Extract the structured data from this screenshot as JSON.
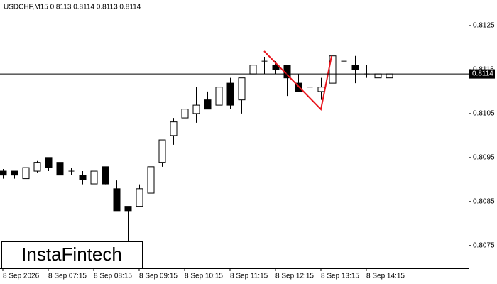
{
  "chart_data": {
    "type": "candlestick",
    "title": "USDCHF,M15  0.8113 0.8114 0.8113 0.8114",
    "categories": [
      "8 Sep 2026",
      null,
      null,
      null,
      "8 Sep 07:15",
      null,
      null,
      null,
      "8 Sep 08:15",
      null,
      null,
      null,
      "8 Sep 09:15",
      null,
      null,
      null,
      "8 Sep 10:15",
      null,
      null,
      null,
      "8 Sep 11:15",
      null,
      null,
      null,
      "8 Sep 12:15",
      null,
      null,
      null,
      "8 Sep 13:15",
      null,
      null,
      null,
      "8 Sep 14:15",
      null,
      null
    ],
    "open": [
      0.80919,
      0.80919,
      0.80902,
      0.80919,
      0.8095,
      0.80939,
      0.80919,
      0.8091,
      0.8089,
      0.80929,
      0.80879,
      0.80839,
      0.80839,
      0.80869,
      0.80939,
      0.81,
      0.8104,
      0.8105,
      0.81081,
      0.81069,
      0.81119,
      0.81081,
      0.8114,
      0.81169,
      0.8116,
      0.8116,
      0.81119,
      0.8111,
      0.811,
      0.81119,
      0.81169,
      0.8116,
      0.8114,
      0.81131,
      0.81131
    ],
    "high": [
      0.80924,
      0.80919,
      0.80931,
      0.80942,
      0.8095,
      0.80939,
      0.80927,
      0.80919,
      0.80927,
      0.80929,
      0.80898,
      0.80839,
      0.80889,
      0.80932,
      0.8099,
      0.8104,
      0.81069,
      0.8111,
      0.811,
      0.81119,
      0.81131,
      0.81131,
      0.81181,
      0.81179,
      0.81169,
      0.8116,
      0.8114,
      0.8114,
      0.81131,
      0.81181,
      0.81181,
      0.81181,
      0.8116,
      0.8114,
      0.8114
    ],
    "low": [
      0.80902,
      0.80902,
      0.809,
      0.80916,
      0.80919,
      0.8091,
      0.8091,
      0.80889,
      0.8089,
      0.80889,
      0.80829,
      0.8076,
      0.80839,
      0.80869,
      0.80929,
      0.80979,
      0.81019,
      0.81029,
      0.8106,
      0.8106,
      0.8106,
      0.8105,
      0.811,
      0.8114,
      0.8114,
      0.8109,
      0.811,
      0.811,
      0.81081,
      0.81119,
      0.81131,
      0.81119,
      0.81131,
      0.8111,
      0.81131
    ],
    "close": [
      0.8091,
      0.8091,
      0.80927,
      0.80939,
      0.80927,
      0.8091,
      0.80919,
      0.809,
      0.80919,
      0.8089,
      0.80829,
      0.80829,
      0.80879,
      0.80929,
      0.8099,
      0.81031,
      0.8106,
      0.81069,
      0.8106,
      0.8111,
      0.81069,
      0.81131,
      0.8116,
      0.81169,
      0.8115,
      0.81131,
      0.811,
      0.8111,
      0.8111,
      0.81181,
      0.81169,
      0.8115,
      0.8114,
      0.8114,
      0.8114
    ],
    "up_color": "#ffffff",
    "down_color": "#000000",
    "line_color": "#000000",
    "ylim": [
      0.80698,
      0.81308
    ],
    "yticks": [
      0.8125,
      0.8115,
      0.8105,
      0.8095,
      0.8085,
      0.8075
    ],
    "current_price": 0.8114,
    "pattern_color": "#e8141c",
    "logo": "InstaFintech"
  }
}
